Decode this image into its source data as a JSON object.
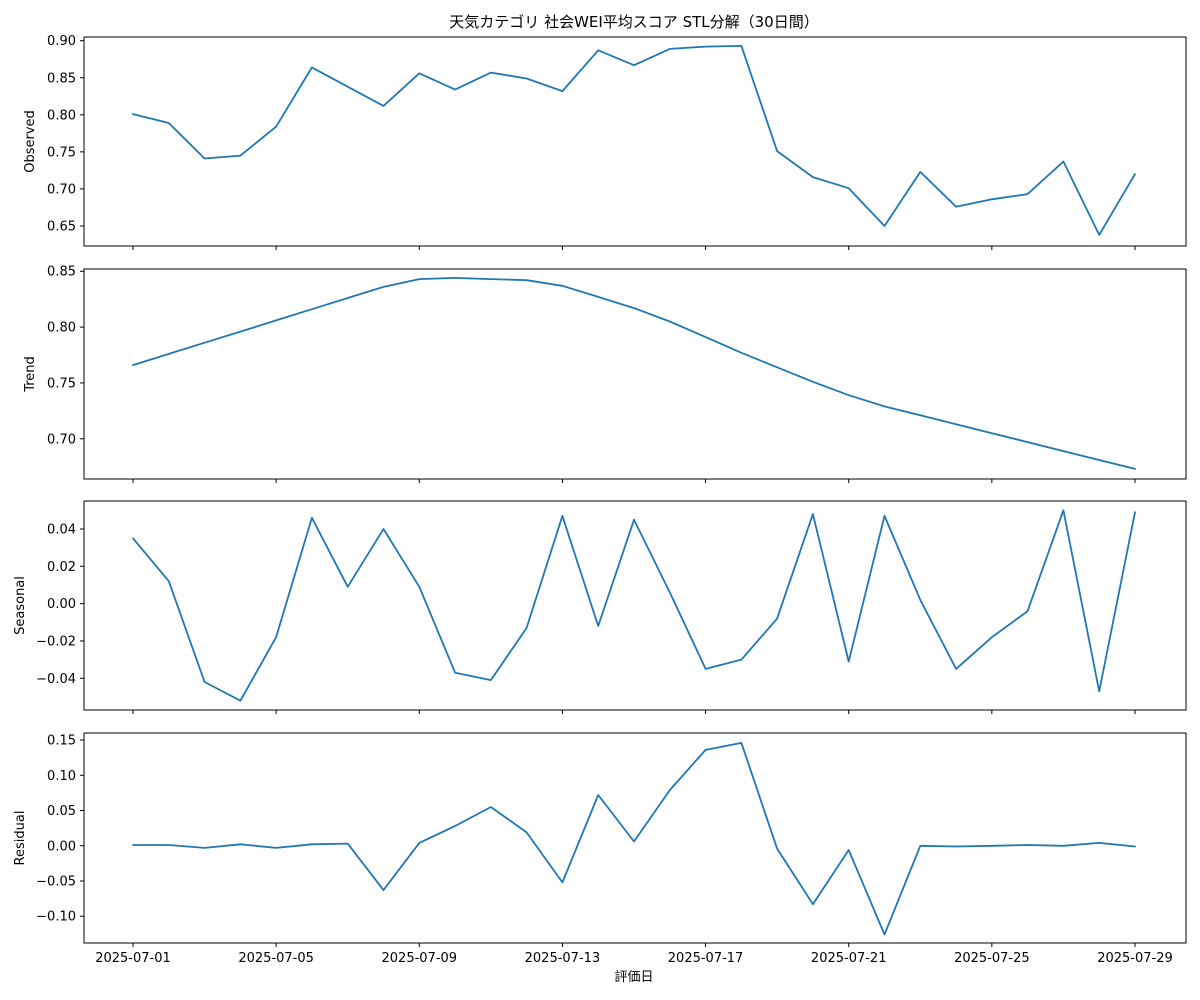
{
  "chart_data": {
    "type": "line",
    "title": "天気カテゴリ 社会WEI平均スコア STL分解（30日間）",
    "xlabel": "評価日",
    "x": [
      "2025-07-01",
      "2025-07-02",
      "2025-07-03",
      "2025-07-04",
      "2025-07-05",
      "2025-07-06",
      "2025-07-07",
      "2025-07-08",
      "2025-07-09",
      "2025-07-10",
      "2025-07-11",
      "2025-07-12",
      "2025-07-13",
      "2025-07-14",
      "2025-07-15",
      "2025-07-16",
      "2025-07-17",
      "2025-07-18",
      "2025-07-19",
      "2025-07-20",
      "2025-07-21",
      "2025-07-22",
      "2025-07-23",
      "2025-07-24",
      "2025-07-25",
      "2025-07-26",
      "2025-07-27",
      "2025-07-28",
      "2025-07-29"
    ],
    "xticks": [
      "2025-07-01",
      "2025-07-05",
      "2025-07-09",
      "2025-07-13",
      "2025-07-17",
      "2025-07-21",
      "2025-07-25",
      "2025-07-29"
    ],
    "line_color": "#1f77b4",
    "panels": [
      {
        "ylabel": "Observed",
        "ylim": [
          0.623,
          0.905
        ],
        "yticks": [
          0.65,
          0.7,
          0.75,
          0.8,
          0.85,
          0.9
        ],
        "yticklabels": [
          "0.65",
          "0.70",
          "0.75",
          "0.80",
          "0.85",
          "0.90"
        ],
        "values": [
          0.801,
          0.789,
          0.741,
          0.745,
          0.784,
          0.864,
          0.838,
          0.812,
          0.856,
          0.834,
          0.857,
          0.849,
          0.832,
          0.887,
          0.867,
          0.889,
          0.892,
          0.893,
          0.751,
          0.716,
          0.701,
          0.65,
          0.723,
          0.676,
          0.686,
          0.693,
          0.737,
          0.638,
          0.72
        ]
      },
      {
        "ylabel": "Trend",
        "ylim": [
          0.664,
          0.852
        ],
        "yticks": [
          0.7,
          0.75,
          0.8,
          0.85
        ],
        "yticklabels": [
          "0.70",
          "0.75",
          "0.80",
          "0.85"
        ],
        "values": [
          0.766,
          0.776,
          0.786,
          0.796,
          0.806,
          0.816,
          0.826,
          0.836,
          0.843,
          0.844,
          0.843,
          0.842,
          0.837,
          0.827,
          0.817,
          0.805,
          0.791,
          0.777,
          0.764,
          0.751,
          0.739,
          0.729,
          0.721,
          0.713,
          0.705,
          0.697,
          0.689,
          0.681,
          0.673
        ]
      },
      {
        "ylabel": "Seasonal",
        "ylim": [
          -0.057,
          0.055
        ],
        "yticks": [
          -0.04,
          -0.02,
          0.0,
          0.02,
          0.04
        ],
        "yticklabels": [
          "−0.04",
          "−0.02",
          "0.00",
          "0.02",
          "0.04"
        ],
        "values": [
          0.035,
          0.012,
          -0.042,
          -0.052,
          -0.018,
          0.046,
          0.009,
          0.04,
          0.009,
          -0.037,
          -0.041,
          -0.013,
          0.047,
          -0.012,
          0.045,
          0.006,
          -0.035,
          -0.03,
          -0.008,
          0.048,
          -0.031,
          0.047,
          0.002,
          -0.035,
          -0.018,
          -0.004,
          0.05,
          -0.047,
          0.049
        ]
      },
      {
        "ylabel": "Residual",
        "ylim": [
          -0.138,
          0.16
        ],
        "yticks": [
          -0.1,
          -0.05,
          0.0,
          0.05,
          0.1,
          0.15
        ],
        "yticklabels": [
          "−0.10",
          "−0.05",
          "0.00",
          "0.05",
          "0.10",
          "0.15"
        ],
        "values": [
          0.001,
          0.001,
          -0.003,
          0.002,
          -0.003,
          0.002,
          0.003,
          -0.063,
          0.004,
          0.028,
          0.055,
          0.019,
          -0.052,
          0.072,
          0.006,
          0.079,
          0.136,
          0.146,
          -0.004,
          -0.083,
          -0.006,
          -0.126,
          0.0,
          -0.001,
          0.0,
          0.001,
          0.0,
          0.004,
          -0.001
        ]
      }
    ]
  }
}
